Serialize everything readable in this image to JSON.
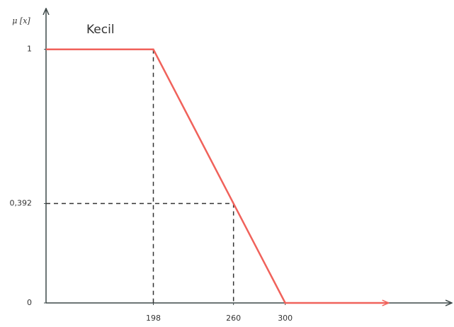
{
  "chart_data": {
    "type": "line",
    "y_label": "μ [x]",
    "annotation": "Kecil",
    "x": [
      115,
      198,
      300,
      380
    ],
    "series": [
      {
        "name": "Kecil",
        "color": "#f0625b",
        "values": [
          1,
          1,
          0,
          0
        ]
      }
    ],
    "reference_point": {
      "x": 260,
      "y": 0.392
    },
    "xlim": [
      115,
      430
    ],
    "ylim": [
      0,
      1.15
    ],
    "xticks": [
      198,
      260,
      300
    ],
    "yticks": [
      0,
      {
        "value": 0.392,
        "label": "0,392"
      },
      1
    ],
    "grid": false
  }
}
